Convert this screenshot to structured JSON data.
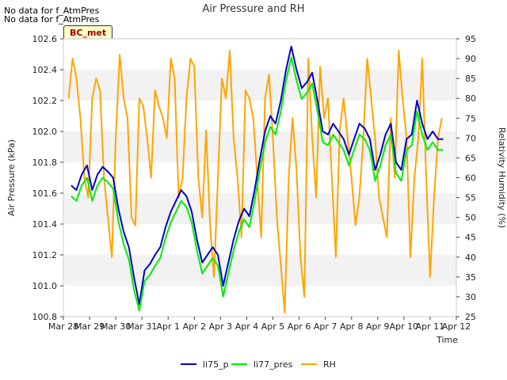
{
  "notes": [
    "No data for f_AtmPres",
    "No data for f_AtmPres"
  ],
  "badge": "BC_met",
  "chart_data": {
    "type": "line",
    "title": "Air Pressure and RH",
    "xlabel": "Time",
    "ylabel": "Air Pressure (kPa)",
    "y2label": "Relativity Humidity (%)",
    "x_ticks": [
      "Mar 28",
      "Mar 29",
      "Mar 30",
      "Mar 31",
      "Apr 1",
      "Apr 2",
      "Apr 3",
      "Apr 4",
      "Apr 5",
      "Apr 6",
      "Apr 7",
      "Apr 8",
      "Apr 9",
      "Apr 10",
      "Apr 11",
      "Apr 12"
    ],
    "ylim": [
      100.8,
      102.6
    ],
    "y_ticks": [
      "100.8",
      "101.0",
      "101.2",
      "101.4",
      "101.6",
      "101.8",
      "102.0",
      "102.2",
      "102.4",
      "102.6"
    ],
    "y2lim": [
      25,
      95
    ],
    "y2_ticks": [
      "25",
      "30",
      "35",
      "40",
      "45",
      "50",
      "55",
      "60",
      "65",
      "70",
      "75",
      "80",
      "85",
      "90",
      "95"
    ],
    "grid": "horizontal bands",
    "legend_position": "bottom",
    "series": [
      {
        "name": "li75_p",
        "axis": "left",
        "color": "#0000cc",
        "x": [
          0.3,
          0.5,
          0.7,
          0.9,
          1.1,
          1.3,
          1.5,
          1.7,
          1.9,
          2.1,
          2.3,
          2.5,
          2.7,
          2.9,
          3.1,
          3.3,
          3.5,
          3.7,
          3.9,
          4.1,
          4.3,
          4.5,
          4.7,
          4.9,
          5.1,
          5.3,
          5.5,
          5.7,
          5.9,
          6.1,
          6.3,
          6.5,
          6.7,
          6.9,
          7.1,
          7.3,
          7.5,
          7.7,
          7.9,
          8.1,
          8.3,
          8.5,
          8.7,
          8.9,
          9.1,
          9.3,
          9.5,
          9.7,
          9.9,
          10.1,
          10.3,
          10.5,
          10.7,
          10.9,
          11.1,
          11.3,
          11.5,
          11.7,
          11.9,
          12.1,
          12.3,
          12.5,
          12.7,
          12.9,
          13.1,
          13.3,
          13.5,
          13.7,
          13.9,
          14.1,
          14.3,
          14.5
        ],
        "values": [
          101.65,
          101.62,
          101.72,
          101.78,
          101.62,
          101.72,
          101.77,
          101.74,
          101.7,
          101.5,
          101.35,
          101.25,
          101.05,
          100.88,
          101.1,
          101.14,
          101.2,
          101.25,
          101.38,
          101.48,
          101.55,
          101.62,
          101.58,
          101.48,
          101.3,
          101.15,
          101.2,
          101.25,
          101.2,
          101.0,
          101.15,
          101.3,
          101.42,
          101.5,
          101.45,
          101.62,
          101.82,
          102.0,
          102.1,
          102.05,
          102.2,
          102.4,
          102.55,
          102.4,
          102.28,
          102.32,
          102.38,
          102.2,
          102.0,
          101.98,
          102.05,
          102.0,
          101.95,
          101.85,
          101.95,
          102.05,
          102.02,
          101.95,
          101.75,
          101.85,
          101.98,
          102.05,
          101.8,
          101.75,
          101.95,
          101.98,
          102.2,
          102.05,
          101.95,
          102.0,
          101.95,
          101.95
        ]
      },
      {
        "name": "li77_pres",
        "axis": "left",
        "color": "#00ee00",
        "x": [
          0.3,
          0.5,
          0.7,
          0.9,
          1.1,
          1.3,
          1.5,
          1.7,
          1.9,
          2.1,
          2.3,
          2.5,
          2.7,
          2.9,
          3.1,
          3.3,
          3.5,
          3.7,
          3.9,
          4.1,
          4.3,
          4.5,
          4.7,
          4.9,
          5.1,
          5.3,
          5.5,
          5.7,
          5.9,
          6.1,
          6.3,
          6.5,
          6.7,
          6.9,
          7.1,
          7.3,
          7.5,
          7.7,
          7.9,
          8.1,
          8.3,
          8.5,
          8.7,
          8.9,
          9.1,
          9.3,
          9.5,
          9.7,
          9.9,
          10.1,
          10.3,
          10.5,
          10.7,
          10.9,
          11.1,
          11.3,
          11.5,
          11.7,
          11.9,
          12.1,
          12.3,
          12.5,
          12.7,
          12.9,
          13.1,
          13.3,
          13.5,
          13.7,
          13.9,
          14.1,
          14.3,
          14.5
        ],
        "values": [
          101.58,
          101.55,
          101.65,
          101.7,
          101.55,
          101.65,
          101.7,
          101.67,
          101.63,
          101.42,
          101.27,
          101.17,
          100.97,
          100.84,
          101.03,
          101.07,
          101.13,
          101.18,
          101.31,
          101.41,
          101.48,
          101.55,
          101.51,
          101.41,
          101.23,
          101.08,
          101.13,
          101.18,
          101.13,
          100.93,
          101.08,
          101.23,
          101.35,
          101.43,
          101.38,
          101.55,
          101.75,
          101.93,
          102.03,
          101.98,
          102.13,
          102.33,
          102.48,
          102.33,
          102.21,
          102.25,
          102.31,
          102.13,
          101.93,
          101.91,
          101.98,
          101.93,
          101.88,
          101.78,
          101.88,
          101.98,
          101.95,
          101.88,
          101.68,
          101.78,
          101.91,
          101.98,
          101.73,
          101.68,
          101.88,
          101.91,
          102.13,
          101.98,
          101.88,
          101.93,
          101.88,
          101.88
        ]
      },
      {
        "name": "RH",
        "axis": "right",
        "color": "#ffa500",
        "x": [
          0.2,
          0.35,
          0.5,
          0.65,
          0.8,
          0.95,
          1.1,
          1.25,
          1.4,
          1.55,
          1.7,
          1.85,
          2.0,
          2.15,
          2.3,
          2.45,
          2.6,
          2.75,
          2.9,
          3.05,
          3.2,
          3.35,
          3.5,
          3.65,
          3.8,
          3.95,
          4.1,
          4.25,
          4.4,
          4.55,
          4.7,
          4.85,
          5.0,
          5.15,
          5.3,
          5.45,
          5.6,
          5.75,
          5.9,
          6.05,
          6.2,
          6.35,
          6.5,
          6.65,
          6.8,
          6.95,
          7.1,
          7.25,
          7.4,
          7.55,
          7.7,
          7.85,
          8.0,
          8.15,
          8.3,
          8.45,
          8.6,
          8.75,
          8.9,
          9.05,
          9.2,
          9.35,
          9.5,
          9.65,
          9.8,
          9.95,
          10.1,
          10.25,
          10.4,
          10.55,
          10.7,
          10.85,
          11.0,
          11.15,
          11.3,
          11.45,
          11.6,
          11.75,
          11.9,
          12.05,
          12.2,
          12.35,
          12.5,
          12.65,
          12.8,
          12.95,
          13.1,
          13.25,
          13.4,
          13.55,
          13.7,
          13.85,
          14.0,
          14.15,
          14.3,
          14.45
        ],
        "values": [
          80,
          90,
          85,
          75,
          60,
          55,
          80,
          85,
          82,
          60,
          50,
          40,
          70,
          91,
          80,
          75,
          50,
          48,
          80,
          78,
          70,
          60,
          82,
          78,
          75,
          70,
          90,
          85,
          55,
          60,
          80,
          90,
          88,
          60,
          50,
          72,
          48,
          35,
          60,
          85,
          80,
          92,
          70,
          60,
          45,
          82,
          80,
          75,
          60,
          45,
          80,
          86,
          70,
          50,
          38,
          26,
          60,
          75,
          62,
          40,
          30,
          90,
          70,
          55,
          88,
          75,
          80,
          60,
          40,
          72,
          80,
          70,
          60,
          48,
          55,
          70,
          90,
          80,
          70,
          55,
          50,
          45,
          75,
          60,
          92,
          80,
          70,
          40,
          60,
          70,
          90,
          60,
          35,
          55,
          70,
          75
        ]
      }
    ]
  }
}
